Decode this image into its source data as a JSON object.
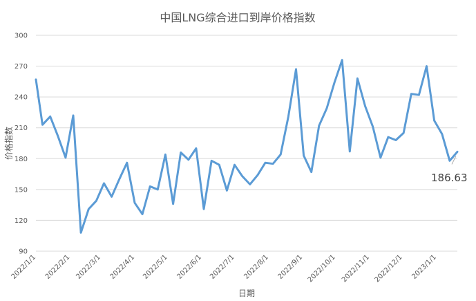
{
  "chart_data": {
    "type": "line",
    "title": "中国LNG综合进口到岸价格指数",
    "xlabel": "日期",
    "ylabel": "价格指数",
    "ylim": [
      90,
      300
    ],
    "yticks": [
      90,
      120,
      150,
      180,
      210,
      240,
      270,
      300
    ],
    "grid": true,
    "legend": "none",
    "series_color": "#5b9bd5",
    "xtick_labels": [
      "2022/1/1",
      "2022/2/1",
      "2022/3/1",
      "2022/4/1",
      "2022/5/1",
      "2022/6/1",
      "2022/7/1",
      "2022/8/1",
      "2022/9/1",
      "2022/10/1",
      "2022/11/1",
      "2022/12/1",
      "2023/1/1"
    ],
    "x": [
      "2022/1/1",
      "2022/1/7",
      "2022/1/14",
      "2022/1/21",
      "2022/1/28",
      "2022/2/4",
      "2022/2/11",
      "2022/2/18",
      "2022/2/25",
      "2022/3/4",
      "2022/3/11",
      "2022/3/18",
      "2022/3/25",
      "2022/4/1",
      "2022/4/8",
      "2022/4/15",
      "2022/4/22",
      "2022/4/29",
      "2022/5/6",
      "2022/5/13",
      "2022/5/20",
      "2022/5/27",
      "2022/6/3",
      "2022/6/10",
      "2022/6/17",
      "2022/6/24",
      "2022/7/1",
      "2022/7/8",
      "2022/7/15",
      "2022/7/22",
      "2022/7/29",
      "2022/8/5",
      "2022/8/12",
      "2022/8/19",
      "2022/8/26",
      "2022/9/2",
      "2022/9/9",
      "2022/9/16",
      "2022/9/23",
      "2022/9/30",
      "2022/10/7",
      "2022/10/14",
      "2022/10/21",
      "2022/10/28",
      "2022/11/4",
      "2022/11/11",
      "2022/11/18",
      "2022/11/25",
      "2022/12/2",
      "2022/12/9",
      "2022/12/16",
      "2022/12/23",
      "2022/12/30",
      "2023/1/6",
      "2023/1/13",
      "2023/1/20"
    ],
    "values": [
      257,
      213,
      221,
      202,
      181,
      222,
      108,
      131,
      139,
      156,
      143,
      160,
      176,
      137,
      126,
      153,
      150,
      184,
      136,
      186,
      179,
      190,
      131,
      178,
      174,
      149,
      174,
      163,
      155,
      164,
      176,
      175,
      184,
      221,
      267,
      183,
      167,
      212,
      229,
      254,
      276,
      187,
      258,
      231,
      211,
      181,
      201,
      198,
      205,
      243,
      242,
      270,
      217,
      204,
      178,
      186.63
    ],
    "data_label": "186.63"
  }
}
